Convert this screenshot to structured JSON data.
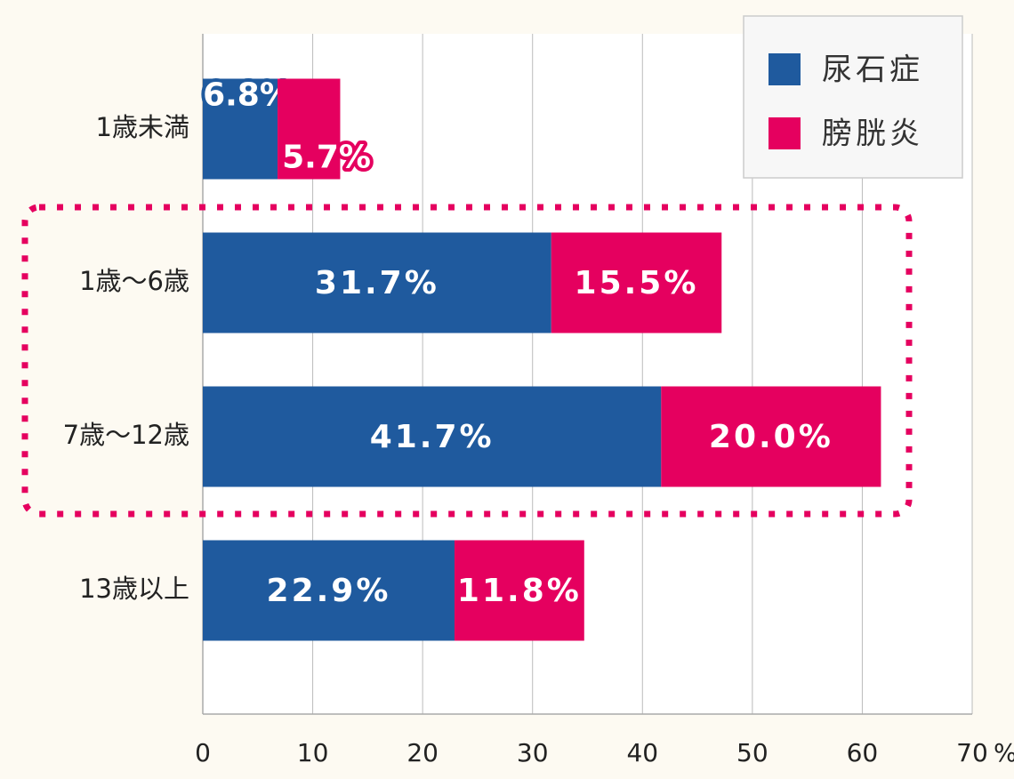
{
  "chart_data": {
    "type": "stacked_barh",
    "categories": [
      "1歳未満",
      "1歳〜6歳",
      "7歳〜12歳",
      "13歳以上"
    ],
    "series": [
      {
        "name": "尿石症",
        "color": "#1f5a9e",
        "values": [
          6.8,
          31.7,
          41.7,
          22.9
        ],
        "value_labels": [
          "6.8%",
          "31.7%",
          "41.7%",
          "22.9%"
        ]
      },
      {
        "name": "膀胱炎",
        "color": "#e5005f",
        "values": [
          5.7,
          15.5,
          20.0,
          11.8
        ],
        "value_labels": [
          "5.7%",
          "15.5%",
          "20.0%",
          "11.8%"
        ]
      }
    ],
    "xlim": [
      0,
      70
    ],
    "xticks": [
      0,
      10,
      20,
      30,
      40,
      50,
      60,
      70
    ],
    "x_unit": "%",
    "grid": true,
    "legend": "top-right"
  }
}
